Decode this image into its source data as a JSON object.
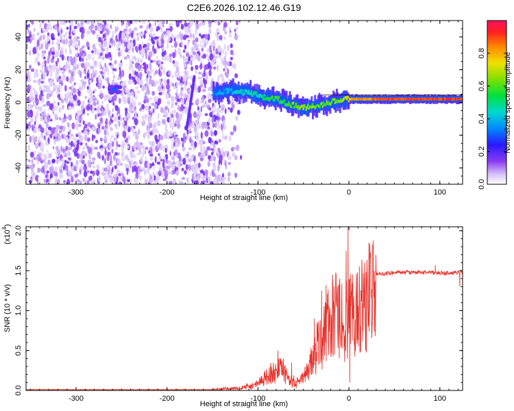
{
  "title": "C2E6.2026.102.12.46.G19",
  "chart_data": [
    {
      "type": "heatmap",
      "name": "spectrogram",
      "xlabel": "Height of straight line (km)",
      "ylabel": "Frequency (Hz)",
      "xlim": [
        -355,
        125
      ],
      "ylim": [
        -50,
        50
      ],
      "xticks": [
        -300,
        -200,
        -100,
        0,
        100
      ],
      "xtick_labels": [
        "-300",
        "-200",
        "-100",
        "0",
        "100"
      ],
      "yticks": [
        -40,
        -20,
        0,
        20,
        40
      ],
      "ytick_labels": [
        "-40",
        "-20",
        "0",
        "20",
        "40"
      ],
      "colorbar": {
        "label": "Normalized spectral amplitude",
        "range": [
          0,
          1
        ],
        "ticks": [
          0.0,
          0.2,
          0.4,
          0.6,
          0.8
        ],
        "tick_labels": [
          "0.0",
          "0.2",
          "0.4",
          "0.6",
          "0.8"
        ]
      },
      "noise_region_x": [
        -355,
        -125
      ],
      "features": [
        {
          "name": "blob",
          "x": -258,
          "y": 8,
          "amp": 0.15
        },
        {
          "name": "streak",
          "x_from": -178,
          "y_from": -15,
          "x_to": -170,
          "y_to": 15,
          "amp": 0.18
        }
      ],
      "ridge": {
        "amplitude_note": "normalized spectral amplitude along the carrier line",
        "x": [
          -150,
          -130,
          -110,
          -95,
          -80,
          -65,
          -55,
          -45,
          -35,
          -25,
          -15,
          -5,
          0,
          20,
          40,
          60,
          80,
          100,
          125
        ],
        "y": [
          6,
          7,
          6,
          3,
          2,
          -1,
          -3,
          -3,
          -2,
          -1,
          1,
          2,
          2,
          2,
          2,
          2,
          2,
          2,
          2
        ],
        "amp": [
          0.35,
          0.4,
          0.45,
          0.5,
          0.55,
          0.6,
          0.65,
          0.65,
          0.6,
          0.6,
          0.62,
          0.7,
          0.8,
          0.85,
          0.9,
          0.9,
          0.9,
          0.9,
          0.9
        ]
      }
    },
    {
      "type": "line",
      "name": "snr",
      "xlabel": "Height of straight line (km)",
      "ylabel": "SNR (10 * v/v)",
      "multiplier_label": "(x10",
      "multiplier_exp": "4",
      "multiplier_close": ")",
      "xlim": [
        -355,
        125
      ],
      "ylim": [
        0,
        2.05
      ],
      "xticks": [
        -300,
        -200,
        -100,
        0,
        100
      ],
      "xtick_labels": [
        "-300",
        "-200",
        "-100",
        "0",
        "100"
      ],
      "yticks": [
        0.0,
        0.5,
        1.0,
        1.5,
        2.0
      ],
      "ytick_labels": [
        "0.0",
        "0.5",
        "1.0",
        "1.5",
        "2.0"
      ],
      "color": "#e8312a",
      "series": [
        {
          "name": "SNR",
          "envelope_x": [
            -355,
            -150,
            -120,
            -100,
            -85,
            -75,
            -65,
            -55,
            -45,
            -35,
            -25,
            -15,
            -5,
            0,
            10,
            20,
            30,
            50,
            80,
            110,
            125
          ],
          "envelope_y": [
            0.01,
            0.01,
            0.03,
            0.1,
            0.25,
            0.3,
            0.15,
            0.1,
            0.3,
            0.6,
            0.9,
            1.05,
            1.0,
            1.0,
            1.2,
            1.35,
            1.45,
            1.48,
            1.48,
            1.47,
            1.48
          ],
          "spikes": [
            {
              "x": -78,
              "y": 0.5
            },
            {
              "x": -72,
              "y": 0.4
            },
            {
              "x": -63,
              "y": 0.35
            },
            {
              "x": -38,
              "y": 0.9
            },
            {
              "x": -30,
              "y": 1.25
            },
            {
              "x": -25,
              "y": 1.32
            },
            {
              "x": -18,
              "y": 1.45
            },
            {
              "x": -10,
              "y": 1.4
            },
            {
              "x": -3,
              "y": 1.75
            },
            {
              "x": -1,
              "y": 2.05
            },
            {
              "x": 1,
              "y": 0.1
            },
            {
              "x": 95,
              "y": 1.57
            },
            {
              "x": 122,
              "y": 1.3
            }
          ]
        }
      ]
    }
  ]
}
